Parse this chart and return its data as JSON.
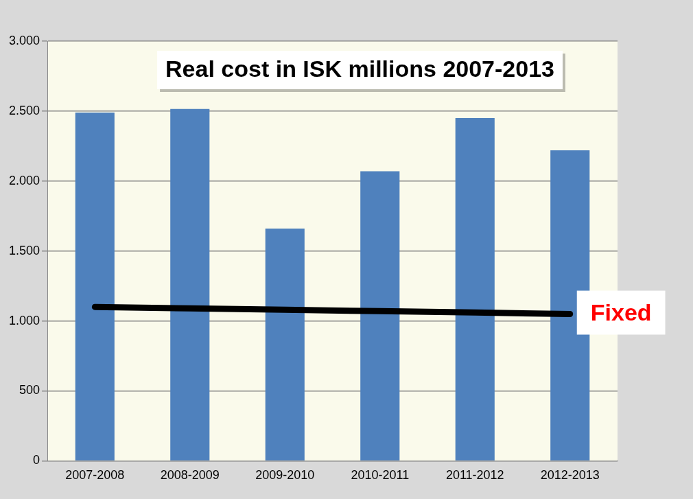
{
  "chart_data": {
    "type": "bar",
    "title": "Real cost in ISK millions 2007-2013",
    "categories": [
      "2007-2008",
      "2008-2009",
      "2009-2010",
      "2010-2011",
      "2011-2012",
      "2012-2013"
    ],
    "series": [
      {
        "color": "#4f81bd",
        "values": [
          2490,
          2515,
          1660,
          2070,
          2450,
          2220
        ]
      },
      {
        "type": "line",
        "name": "Fixed",
        "color": "#000000",
        "values": [
          1100,
          1090,
          1080,
          1070,
          1060,
          1050
        ]
      }
    ],
    "ylim": [
      0,
      3000
    ],
    "yticks": [
      0,
      500,
      {
        "value": 1000,
        "label": "1.000"
      },
      {
        "value": 1500,
        "label": "1.500"
      },
      {
        "value": 2000,
        "label": "2.000"
      },
      {
        "value": 2500,
        "label": "2.500"
      },
      {
        "value": 3000,
        "label": "3.000"
      }
    ],
    "grid": "y",
    "legend": false,
    "marker": "none",
    "line_style": "solid"
  }
}
